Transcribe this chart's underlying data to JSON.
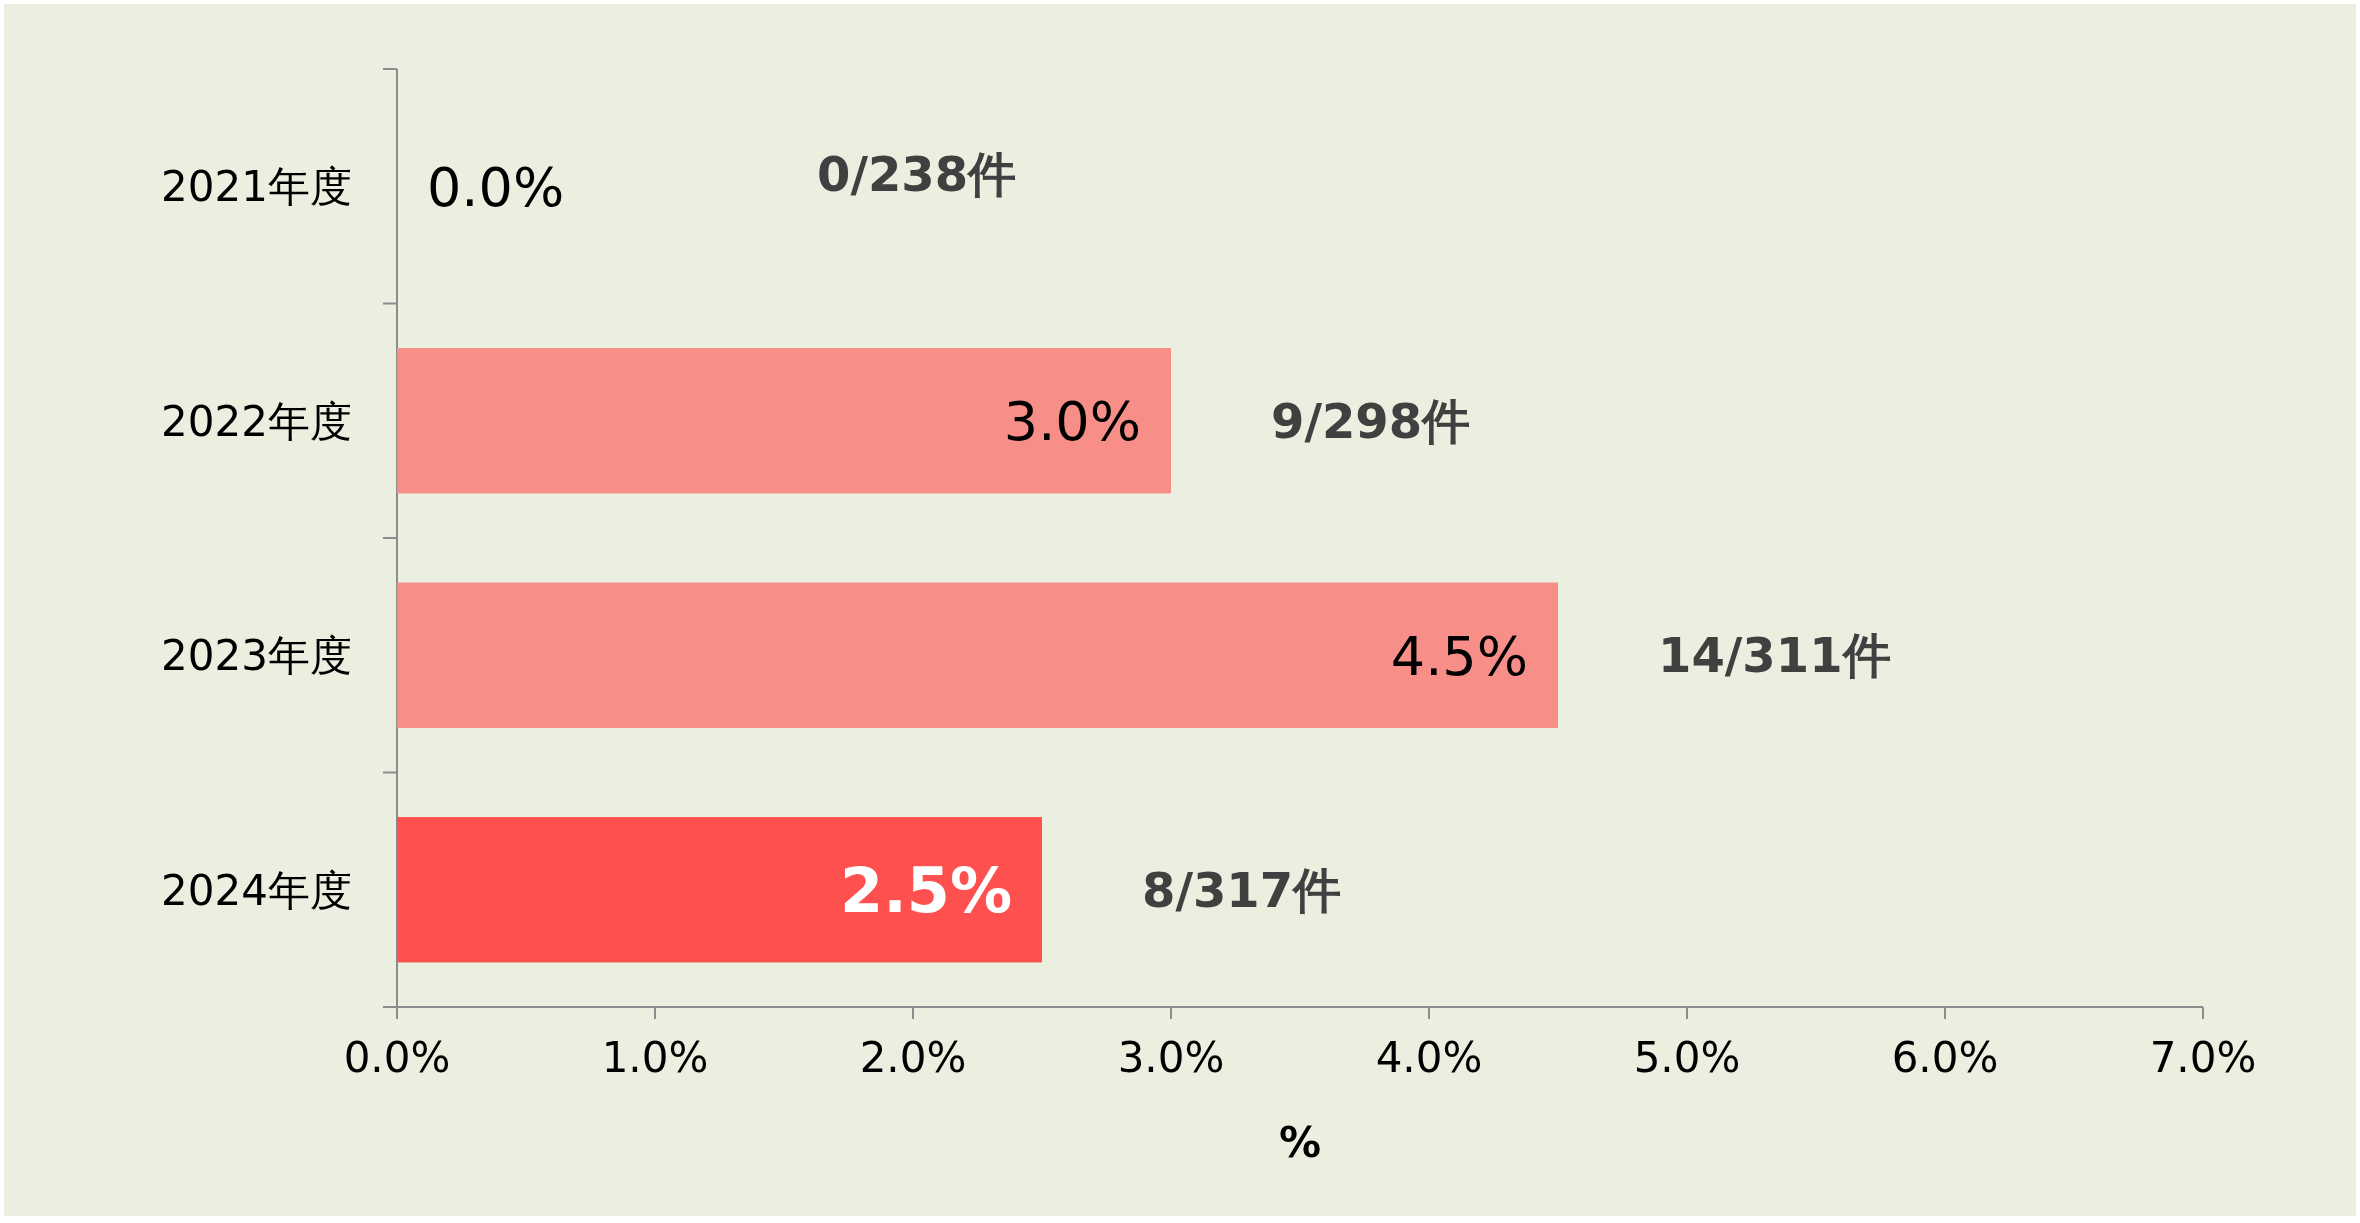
{
  "chart_data": {
    "type": "bar",
    "orientation": "horizontal",
    "xlabel": "%",
    "categories": [
      "2021年度",
      "2022年度",
      "2023年度",
      "2024年度"
    ],
    "values": [
      0.0,
      3.0,
      4.5,
      2.5
    ],
    "value_labels": [
      "0.0%",
      "3.0%",
      "4.5%",
      "2.5%"
    ],
    "colors": [
      "#f78f88",
      "#f78f88",
      "#f78f88",
      "#ff5050"
    ],
    "xlim": [
      0,
      7
    ],
    "xticks": [
      {
        "value": 0,
        "label": "0.0%"
      },
      {
        "value": 1,
        "label": "1.0%"
      },
      {
        "value": 2,
        "label": "2.0%"
      },
      {
        "value": 3,
        "label": "3.0%"
      },
      {
        "value": 4,
        "label": "4.0%"
      },
      {
        "value": 5,
        "label": "5.0%"
      },
      {
        "value": 6,
        "label": "6.0%"
      },
      {
        "value": 7,
        "label": "7.0%"
      }
    ],
    "annotations": [
      "0/238件",
      "9/298件",
      "14/311件",
      "8/317件"
    ]
  }
}
